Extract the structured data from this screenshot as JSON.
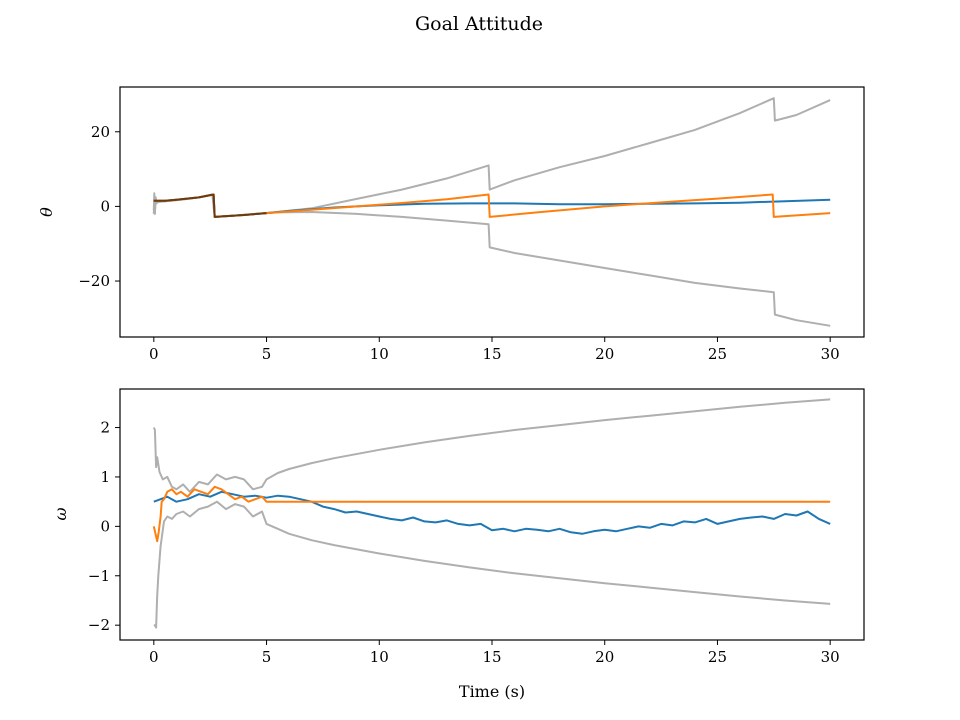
{
  "title": "Goal Attitude",
  "colors": {
    "blue": "#1f77b4",
    "orange": "#ff7f0e",
    "gray": "#afafaf",
    "overlap": "#6b3a10",
    "frame": "#000000"
  },
  "chart_data": [
    {
      "type": "line",
      "ylabel": "θ",
      "xlabel": "",
      "xlim": [
        -1.5,
        31.5
      ],
      "ylim": [
        -35,
        32
      ],
      "xticks": [
        0,
        5,
        10,
        15,
        20,
        25,
        30
      ],
      "xtick_labels": [
        "0",
        "5",
        "10",
        "15",
        "20",
        "25",
        "30"
      ],
      "yticks": [
        20,
        0,
        -20
      ],
      "ytick_labels": [
        "20",
        "0",
        "−20"
      ],
      "grid": false,
      "series": [
        {
          "color": "gray",
          "x": [
            0,
            0.02,
            0.05,
            0.08,
            0.12,
            0.2,
            0.5,
            1,
            1.5,
            2,
            2.6,
            2.7,
            3.5,
            4.5,
            5.5,
            7,
            9,
            11,
            13,
            14.85,
            14.9,
            16,
            18,
            20,
            22,
            24,
            26,
            27.5,
            27.55,
            28.5,
            30
          ],
          "y": [
            -1,
            3.5,
            -2,
            2.5,
            1,
            1.2,
            1.4,
            1.7,
            2,
            2.4,
            3.2,
            -2.8,
            -2.5,
            -2,
            -1.5,
            -0.5,
            2,
            4.5,
            7.5,
            11,
            4.5,
            7,
            10.5,
            13.5,
            17,
            20.5,
            25,
            29,
            23,
            24.5,
            28.5
          ]
        },
        {
          "color": "gray",
          "x": [
            0,
            0.02,
            0.05,
            0.08,
            0.12,
            0.2,
            0.5,
            1,
            1.5,
            2,
            2.6,
            2.7,
            3.5,
            4.5,
            5.5,
            7,
            9,
            11,
            13,
            14.85,
            14.9,
            16,
            18,
            20,
            22,
            24,
            26,
            27.5,
            27.55,
            28.5,
            30
          ],
          "y": [
            -2,
            2,
            -1.5,
            1.8,
            0.8,
            1.2,
            1.4,
            1.7,
            2,
            2.4,
            3.2,
            -2.8,
            -2.5,
            -2,
            -1.6,
            -1.5,
            -2,
            -2.8,
            -3.8,
            -4.8,
            -11,
            -12.5,
            -14.5,
            -16.5,
            -18.5,
            -20.5,
            -22,
            -23,
            -29,
            -30.5,
            -32
          ]
        },
        {
          "color": "blue",
          "x": [
            0,
            0.5,
            1,
            2,
            2.65,
            2.7,
            4,
            5,
            6,
            8,
            10,
            12,
            14,
            16,
            18,
            20,
            22,
            24,
            26,
            28,
            30
          ],
          "y": [
            1.5,
            1.5,
            1.8,
            2.4,
            3.2,
            -2.8,
            -2.3,
            -1.8,
            -1.2,
            -0.3,
            0.3,
            0.7,
            0.8,
            0.8,
            0.6,
            0.6,
            0.7,
            0.8,
            1,
            1.4,
            1.8
          ]
        },
        {
          "color": "orange",
          "x": [
            0,
            0.5,
            1,
            2,
            2.65,
            2.7,
            4,
            5,
            7,
            9,
            11,
            13,
            14.85,
            14.9,
            17,
            20,
            23,
            25,
            27.45,
            27.5,
            29,
            30
          ],
          "y": [
            1.5,
            1.5,
            1.8,
            2.4,
            3.2,
            -2.8,
            -2.3,
            -1.8,
            -0.9,
            0,
            0.9,
            1.9,
            3.2,
            -2.8,
            -1.6,
            0,
            1.3,
            2.1,
            3.2,
            -2.8,
            -2.2,
            -1.8
          ]
        },
        {
          "color": "overlap",
          "x": [
            0,
            0.5,
            1,
            2,
            2.65,
            2.7,
            4,
            5
          ],
          "y": [
            1.5,
            1.5,
            1.8,
            2.4,
            3.2,
            -2.8,
            -2.3,
            -1.8
          ]
        }
      ]
    },
    {
      "type": "line",
      "ylabel": "ω",
      "xlabel": "Time (s)",
      "xlim": [
        -1.5,
        31.5
      ],
      "ylim": [
        -2.3,
        2.78
      ],
      "xticks": [
        0,
        5,
        10,
        15,
        20,
        25,
        30
      ],
      "xtick_labels": [
        "0",
        "5",
        "10",
        "15",
        "20",
        "25",
        "30"
      ],
      "yticks": [
        2,
        1,
        0,
        -1,
        -2
      ],
      "ytick_labels": [
        "2",
        "1",
        "0",
        "−1",
        "−2"
      ],
      "grid": false,
      "series": [
        {
          "color": "gray",
          "x": [
            0,
            0.05,
            0.1,
            0.15,
            0.25,
            0.4,
            0.6,
            0.8,
            1,
            1.3,
            1.6,
            2,
            2.4,
            2.8,
            3.2,
            3.6,
            4,
            4.4,
            4.8,
            5,
            5.5,
            6,
            7,
            8,
            10,
            12,
            14,
            16,
            18,
            20,
            22,
            24,
            26,
            28,
            30
          ],
          "y": [
            2,
            1.95,
            1.2,
            1.4,
            1.1,
            0.95,
            1,
            0.8,
            0.75,
            0.85,
            0.7,
            0.9,
            0.85,
            1.05,
            0.95,
            1,
            0.95,
            0.75,
            0.8,
            0.95,
            1.08,
            1.16,
            1.28,
            1.38,
            1.55,
            1.7,
            1.83,
            1.95,
            2.05,
            2.15,
            2.24,
            2.33,
            2.42,
            2.5,
            2.57
          ]
        },
        {
          "color": "gray",
          "x": [
            0,
            0.05,
            0.1,
            0.15,
            0.2,
            0.3,
            0.45,
            0.6,
            0.8,
            1,
            1.3,
            1.6,
            2,
            2.4,
            2.8,
            3.2,
            3.6,
            4,
            4.4,
            4.8,
            5,
            5.5,
            6,
            7,
            8,
            10,
            12,
            14,
            16,
            18,
            20,
            22,
            24,
            26,
            28,
            30
          ],
          "y": [
            -2,
            -2,
            -2.05,
            -1.4,
            -1,
            -0.4,
            0.1,
            0.2,
            0.15,
            0.25,
            0.3,
            0.2,
            0.35,
            0.4,
            0.5,
            0.35,
            0.45,
            0.4,
            0.2,
            0.3,
            0.05,
            -0.05,
            -0.15,
            -0.28,
            -0.38,
            -0.55,
            -0.7,
            -0.83,
            -0.95,
            -1.05,
            -1.15,
            -1.24,
            -1.33,
            -1.42,
            -1.5,
            -1.57
          ]
        },
        {
          "color": "blue",
          "x": [
            0,
            0.3,
            0.6,
            1,
            1.5,
            2,
            2.5,
            3,
            3.5,
            4,
            4.5,
            5,
            5.5,
            6,
            6.5,
            7,
            7.5,
            8,
            8.5,
            9,
            9.5,
            10,
            10.5,
            11,
            11.5,
            12,
            12.5,
            13,
            13.5,
            14,
            14.5,
            15,
            15.5,
            16,
            16.5,
            17,
            17.5,
            18,
            18.5,
            19,
            19.5,
            20,
            20.5,
            21,
            21.5,
            22,
            22.5,
            23,
            23.5,
            24,
            24.5,
            25,
            25.5,
            26,
            26.5,
            27,
            27.5,
            28,
            28.5,
            29,
            29.5,
            30
          ],
          "y": [
            0.5,
            0.55,
            0.6,
            0.5,
            0.55,
            0.65,
            0.6,
            0.7,
            0.65,
            0.6,
            0.62,
            0.58,
            0.62,
            0.6,
            0.55,
            0.5,
            0.4,
            0.35,
            0.28,
            0.3,
            0.25,
            0.2,
            0.15,
            0.12,
            0.18,
            0.1,
            0.08,
            0.12,
            0.05,
            0.02,
            0.05,
            -0.08,
            -0.05,
            -0.1,
            -0.05,
            -0.07,
            -0.1,
            -0.05,
            -0.12,
            -0.15,
            -0.1,
            -0.07,
            -0.1,
            -0.05,
            0,
            -0.03,
            0.05,
            0.02,
            0.1,
            0.08,
            0.15,
            0.05,
            0.1,
            0.15,
            0.18,
            0.2,
            0.15,
            0.25,
            0.22,
            0.3,
            0.15,
            0.05
          ]
        },
        {
          "color": "orange",
          "x": [
            0,
            0.15,
            0.22,
            0.3,
            0.35,
            0.45,
            0.6,
            0.8,
            1,
            1.2,
            1.5,
            1.8,
            2.1,
            2.4,
            2.7,
            3,
            3.3,
            3.6,
            3.9,
            4.2,
            4.5,
            4.8,
            5,
            5.3,
            6,
            10,
            15,
            20,
            25,
            30
          ],
          "y": [
            0,
            -0.3,
            -0.1,
            0.2,
            0.5,
            0.55,
            0.7,
            0.75,
            0.65,
            0.7,
            0.6,
            0.75,
            0.7,
            0.65,
            0.8,
            0.75,
            0.65,
            0.55,
            0.6,
            0.5,
            0.55,
            0.6,
            0.5,
            0.5,
            0.5,
            0.5,
            0.5,
            0.5,
            0.5,
            0.5
          ]
        }
      ]
    }
  ]
}
